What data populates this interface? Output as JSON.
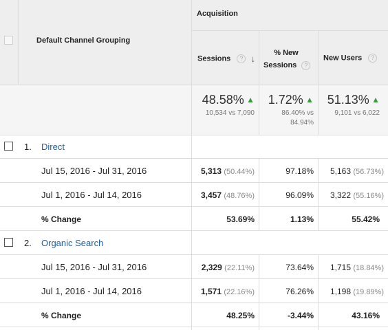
{
  "header": {
    "group_label": "Acquisition",
    "dimension_label": "Default Channel Grouping",
    "col_sessions": "Sessions",
    "col_new_sessions_l1": "% New",
    "col_new_sessions_l2": "Sessions",
    "col_new_users": "New Users",
    "help_glyph": "?",
    "sort_glyph": "↓"
  },
  "summary": {
    "sessions": {
      "value": "48.58%",
      "detail": "10,534 vs 7,090",
      "trend": "up"
    },
    "new_sessions": {
      "value": "1.72%",
      "detail_l1": "86.40% vs",
      "detail_l2": "84.94%",
      "trend": "up"
    },
    "new_users": {
      "value": "51.13%",
      "detail": "9,101 vs 6,022",
      "trend": "up"
    }
  },
  "groups": [
    {
      "index": "1.",
      "name": "Direct",
      "rows": [
        {
          "date": "Jul 15, 2016 - Jul 31, 2016",
          "sessions": "5,313",
          "sessions_pct": "(50.44%)",
          "new_sessions": "97.18%",
          "new_users": "5,163",
          "new_users_pct": "(56.73%)"
        },
        {
          "date": "Jul 1, 2016 - Jul 14, 2016",
          "sessions": "3,457",
          "sessions_pct": "(48.76%)",
          "new_sessions": "96.09%",
          "new_users": "3,322",
          "new_users_pct": "(55.16%)"
        }
      ],
      "change": {
        "label": "% Change",
        "sessions": "53.69%",
        "new_sessions": "1.13%",
        "new_users": "55.42%"
      }
    },
    {
      "index": "2.",
      "name": "Organic Search",
      "rows": [
        {
          "date": "Jul 15, 2016 - Jul 31, 2016",
          "sessions": "2,329",
          "sessions_pct": "(22.11%)",
          "new_sessions": "73.64%",
          "new_users": "1,715",
          "new_users_pct": "(18.84%)"
        },
        {
          "date": "Jul 1, 2016 - Jul 14, 2016",
          "sessions": "1,571",
          "sessions_pct": "(22.16%)",
          "new_sessions": "76.26%",
          "new_users": "1,198",
          "new_users_pct": "(19.89%)"
        }
      ],
      "change": {
        "label": "% Change",
        "sessions": "48.25%",
        "new_sessions": "-3.44%",
        "new_users": "43.16%"
      }
    }
  ],
  "colors": {
    "link": "#1a5fa8",
    "trend_up": "#3c9b3c",
    "header_bg": "#eeeeee",
    "summary_bg": "#f5f5f5"
  },
  "icons": {
    "trend_up": "triangle-up-icon",
    "sort": "arrow-down-icon",
    "help": "question-circle-icon"
  }
}
